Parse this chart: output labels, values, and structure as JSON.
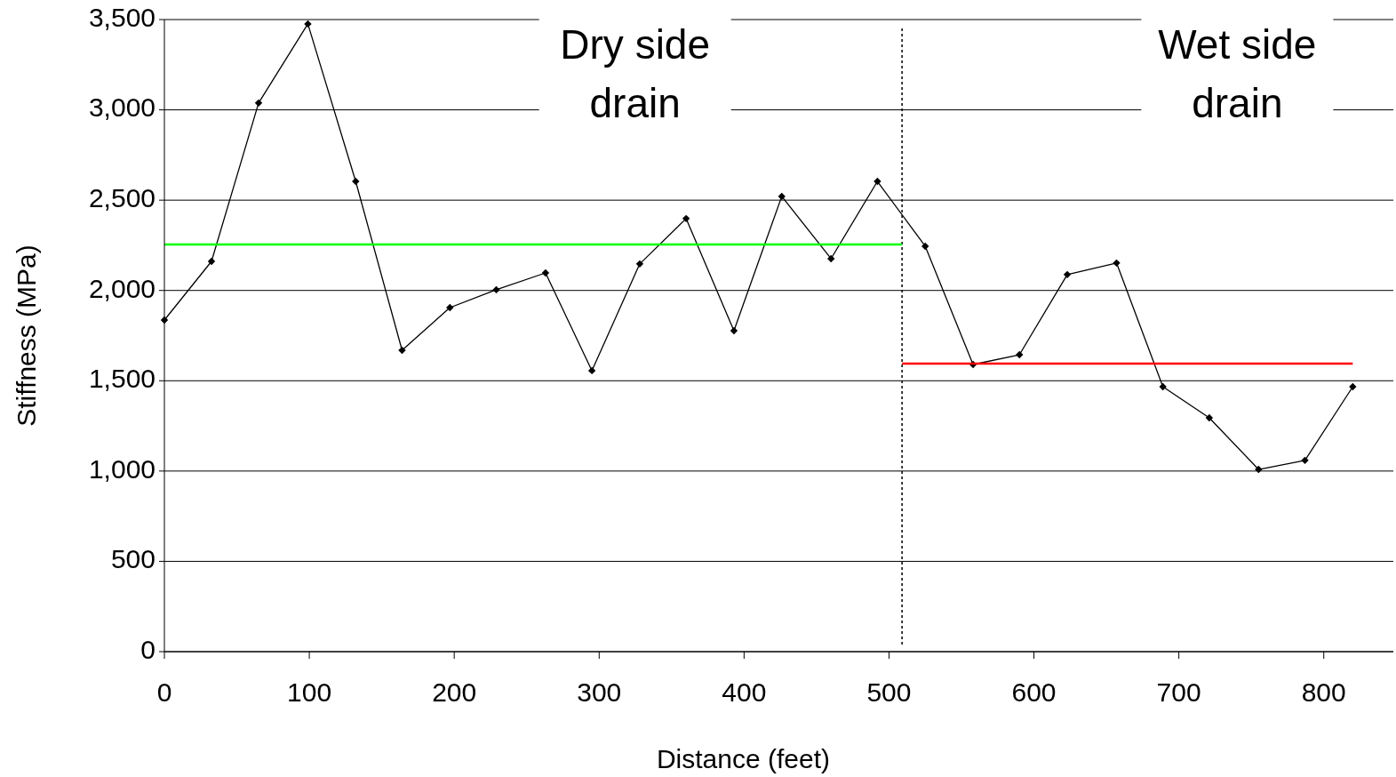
{
  "chart_data": {
    "type": "line",
    "xlabel": "Distance (feet)",
    "ylabel": "Stiffness (MPa)",
    "xlim": [
      0,
      848
    ],
    "xticks": [
      0,
      100,
      200,
      300,
      400,
      500,
      600,
      700,
      800
    ],
    "ylim": [
      0,
      3500
    ],
    "yticks": [
      {
        "value": 0,
        "label": "0"
      },
      {
        "value": 500,
        "label": "500"
      },
      {
        "value": 1000,
        "label": "1,000"
      },
      {
        "value": 1500,
        "label": "1,500"
      },
      {
        "value": 2000,
        "label": "2,000"
      },
      {
        "value": 2500,
        "label": "2,500"
      },
      {
        "value": 3000,
        "label": "3,000"
      },
      {
        "value": 3500,
        "label": "3,500"
      }
    ],
    "grid": "y",
    "series": [
      {
        "color": "#000000",
        "marker": "diamond",
        "x": [
          0,
          32.5,
          65,
          99,
          132,
          164,
          197,
          229,
          263,
          295,
          328,
          360,
          393,
          426,
          460,
          492,
          525,
          558,
          590,
          623,
          657,
          689,
          721,
          755,
          787,
          820
        ],
        "values": [
          1836,
          2161,
          3038,
          3476,
          2604,
          1669,
          1905,
          2004,
          2097,
          1556,
          2147,
          2398,
          1777,
          2521,
          2176,
          2604,
          2245,
          1590,
          1644,
          2088,
          2152,
          1467,
          1295,
          1009,
          1059,
          1467
        ]
      },
      {
        "color": "#00ff00",
        "marker": "none",
        "x": [
          0,
          509
        ],
        "values": [
          2255,
          2255
        ]
      },
      {
        "color": "#ff0000",
        "marker": "none",
        "x": [
          509,
          820
        ],
        "values": [
          1595,
          1595
        ]
      }
    ],
    "ref_lines": [
      {
        "axis": "x",
        "value": 509,
        "color": "#000000",
        "line_style": "dotted"
      }
    ],
    "annotations": [
      "Dry side drain",
      "Wet side drain"
    ]
  }
}
